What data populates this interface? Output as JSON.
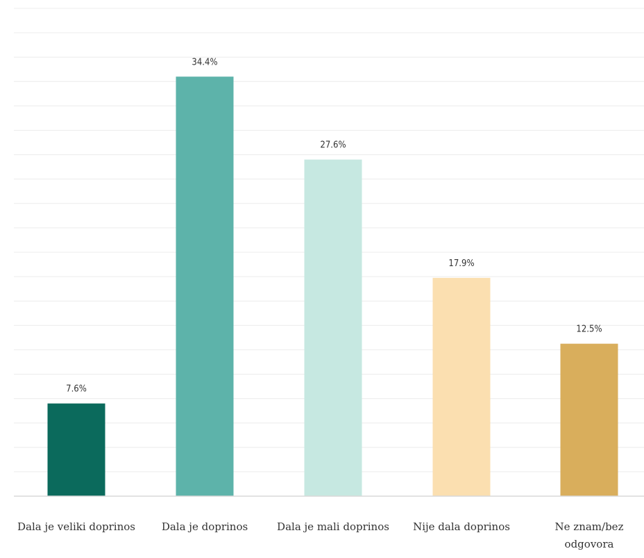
{
  "chart_data": {
    "type": "bar",
    "categories": [
      [
        "Dala je veliki doprinos"
      ],
      [
        "Dala je doprinos"
      ],
      [
        "Dala je mali doprinos"
      ],
      [
        "Nije dala doprinos"
      ],
      [
        "Ne znam/bez",
        "odgovora"
      ]
    ],
    "values": [
      7.6,
      34.4,
      27.6,
      17.9,
      12.5
    ],
    "value_labels": [
      "7.6%",
      "34.4%",
      "27.6%",
      "17.9%",
      "12.5%"
    ],
    "colors": [
      "#0b6a5c",
      "#5db3aa",
      "#c6e8e1",
      "#fbdfb0",
      "#d9ae5c"
    ],
    "ylim": [
      0,
      40
    ],
    "grid": true,
    "legend": "none",
    "title": "",
    "xlabel": "",
    "ylabel": ""
  }
}
